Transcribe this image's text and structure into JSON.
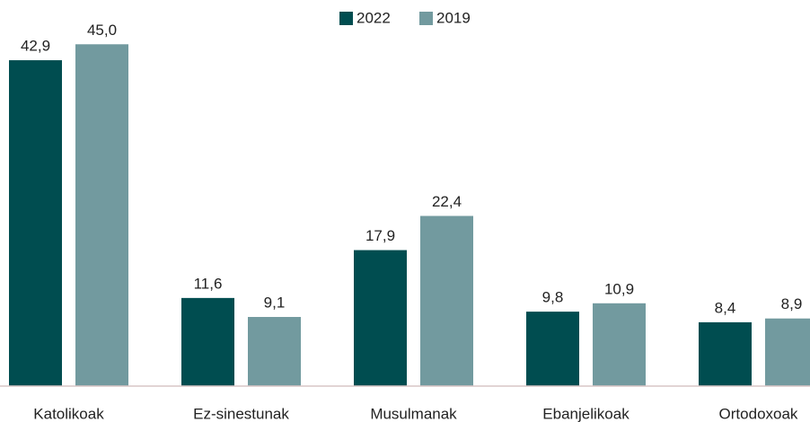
{
  "chart_data": {
    "type": "bar",
    "categories": [
      "Katolikoak",
      "Ez-sinestunak",
      "Musulmanak",
      "Ebanjelikoak",
      "Ortodoxoak"
    ],
    "series": [
      {
        "name": "2022",
        "color": "#004d50",
        "values": [
          42.9,
          11.6,
          17.9,
          9.8,
          8.4
        ],
        "value_labels": [
          "42,9",
          "11,6",
          "17,9",
          "9,8",
          "8,4"
        ]
      },
      {
        "name": "2019",
        "color": "#729a9f",
        "values": [
          45.0,
          9.1,
          22.4,
          10.9,
          8.9
        ],
        "value_labels": [
          "45,0",
          "9,1",
          "22,4",
          "10,9",
          "8,9"
        ]
      }
    ]
  }
}
